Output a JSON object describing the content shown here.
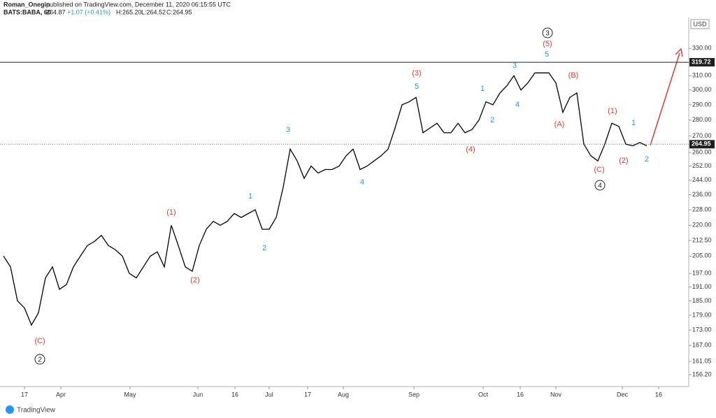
{
  "header": {
    "author": "Roman_Onegin",
    "published": "published on TradingView.com, December 11, 2020 06:15:55 UTC",
    "symbol": "BATS:BABA, 60",
    "last": "264.87",
    "change": "+1.07 (+0.41%)",
    "high": "H:265.20",
    "low": "L:264.52",
    "close": "C:264.95"
  },
  "footer": {
    "brand": "TradingView"
  },
  "chart_data": {
    "type": "line",
    "currency": "USD",
    "color": "#000000",
    "log_scale": true,
    "xlim": [
      0,
      98.5
    ],
    "xticks": [
      {
        "value": 3.5,
        "label": "17"
      },
      {
        "value": 8.7,
        "label": "Apr"
      },
      {
        "value": 18.6,
        "label": "May"
      },
      {
        "value": 28.3,
        "label": "Jun"
      },
      {
        "value": 33.6,
        "label": "16"
      },
      {
        "value": 38.5,
        "label": "Jul"
      },
      {
        "value": 44,
        "label": "17"
      },
      {
        "value": 49.1,
        "label": "Aug"
      },
      {
        "value": 59.2,
        "label": "Sep"
      },
      {
        "value": 69.1,
        "label": "Oct"
      },
      {
        "value": 74.4,
        "label": "16"
      },
      {
        "value": 79.5,
        "label": "Nov"
      },
      {
        "value": 89,
        "label": "Dec"
      },
      {
        "value": 94.2,
        "label": "16"
      }
    ],
    "ylim": [
      152,
      352.6
    ],
    "yticks": [
      {
        "value": 156.2,
        "label": "156.20"
      },
      {
        "value": 161.05,
        "label": "161.05"
      },
      {
        "value": 167,
        "label": "167.00"
      },
      {
        "value": 173,
        "label": "173.00"
      },
      {
        "value": 179,
        "label": "179.00"
      },
      {
        "value": 185,
        "label": "185.00"
      },
      {
        "value": 191,
        "label": "191.00"
      },
      {
        "value": 197,
        "label": "197.00"
      },
      {
        "value": 205,
        "label": "205.00"
      },
      {
        "value": 212.5,
        "label": "212.50"
      },
      {
        "value": 220,
        "label": "220.00"
      },
      {
        "value": 228,
        "label": "228.00"
      },
      {
        "value": 236,
        "label": "236.00"
      },
      {
        "value": 244,
        "label": "244.00"
      },
      {
        "value": 252,
        "label": "252.00"
      },
      {
        "value": 260,
        "label": "260.00"
      },
      {
        "value": 270,
        "label": "270.00"
      },
      {
        "value": 280,
        "label": "280.00"
      },
      {
        "value": 290,
        "label": "290.00"
      },
      {
        "value": 300,
        "label": "300.00"
      },
      {
        "value": 310,
        "label": "310.00"
      },
      {
        "value": 330,
        "label": "330.00"
      }
    ],
    "x": [
      0.5,
      1.5,
      2.5,
      3.5,
      4.5,
      5.5,
      6.5,
      7.5,
      8.5,
      9.5,
      10.5,
      11.5,
      12.5,
      13.5,
      14.5,
      15.5,
      16.5,
      17.5,
      18.5,
      19.5,
      20.5,
      21.5,
      22.5,
      23.5,
      24.5,
      25.5,
      26.5,
      27.5,
      28.5,
      29.5,
      30.5,
      31.5,
      32.5,
      33.5,
      34.5,
      35.5,
      36.5,
      37.5,
      38.5,
      39.5,
      40.5,
      41.5,
      42.5,
      43.5,
      44.5,
      45.5,
      46.5,
      47.5,
      48.5,
      49.5,
      50.5,
      51.5,
      52.5,
      53.5,
      54.5,
      55.5,
      56.5,
      57.5,
      58.5,
      59.5,
      60.5,
      61.5,
      62.5,
      63.5,
      64.5,
      65.5,
      66.5,
      67.5,
      68.5,
      69.5,
      70.5,
      71.5,
      72.5,
      73.5,
      74.5,
      75.5,
      76.5,
      77.5,
      78.5,
      79.5,
      80.5,
      81.5,
      82.5,
      83.5,
      84.5,
      85.5,
      86.5,
      87.5,
      88.5,
      89.5,
      90.5,
      91.5,
      92.5
    ],
    "values": [
      205,
      200,
      185,
      182,
      175,
      180,
      195,
      200,
      190,
      192,
      200,
      205,
      210,
      212,
      215,
      210,
      208,
      205,
      197,
      195,
      200,
      205,
      207,
      200,
      220,
      210,
      200,
      198,
      210,
      218,
      222,
      220,
      222,
      226,
      224,
      226,
      228,
      218,
      218,
      224,
      240,
      262,
      255,
      245,
      252,
      248,
      250,
      250,
      252,
      258,
      262,
      250,
      252,
      255,
      258,
      262,
      275,
      290,
      292,
      295,
      272,
      275,
      278,
      272,
      272,
      278,
      272,
      274,
      280,
      292,
      290,
      298,
      303,
      310,
      300,
      305,
      312,
      312,
      312,
      305,
      285,
      295,
      298,
      265,
      258,
      255,
      265,
      278,
      276,
      265,
      264,
      266,
      264
    ],
    "price_lines": [
      {
        "value": 319.72,
        "style": "solid"
      },
      {
        "value": 264.95,
        "style": "dotted"
      }
    ],
    "annotations": [
      {
        "text": "(C)",
        "color": "#e53935"
      },
      {
        "text": "2",
        "color": "#222222",
        "circled": true
      },
      {
        "text": "(1)",
        "color": "#e53935"
      },
      {
        "text": "(2)",
        "color": "#e53935"
      },
      {
        "text": "1",
        "color": "#2196f3"
      },
      {
        "text": "2",
        "color": "#2196f3"
      },
      {
        "text": "3",
        "color": "#2196f3"
      },
      {
        "text": "4",
        "color": "#2196f3"
      },
      {
        "text": "(3)",
        "color": "#e53935"
      },
      {
        "text": "5",
        "color": "#2196f3"
      },
      {
        "text": "(4)",
        "color": "#e53935"
      },
      {
        "text": "1",
        "color": "#2196f3"
      },
      {
        "text": "2",
        "color": "#2196f3"
      },
      {
        "text": "4",
        "color": "#2196f3"
      },
      {
        "text": "3",
        "color": "#2196f3"
      },
      {
        "text": "5",
        "color": "#2196f3"
      },
      {
        "text": "(5)",
        "color": "#e53935"
      },
      {
        "text": "3",
        "color": "#222222",
        "circled": true
      },
      {
        "text": "(A)",
        "color": "#e53935"
      },
      {
        "text": "(B)",
        "color": "#e53935"
      },
      {
        "text": "(1)",
        "color": "#e53935"
      },
      {
        "text": "1",
        "color": "#2196f3"
      },
      {
        "text": "(C)",
        "color": "#e53935"
      },
      {
        "text": "4",
        "color": "#222222",
        "circled": true
      },
      {
        "text": "(2)",
        "color": "#e53935"
      },
      {
        "text": "2",
        "color": "#2196f3"
      }
    ]
  }
}
